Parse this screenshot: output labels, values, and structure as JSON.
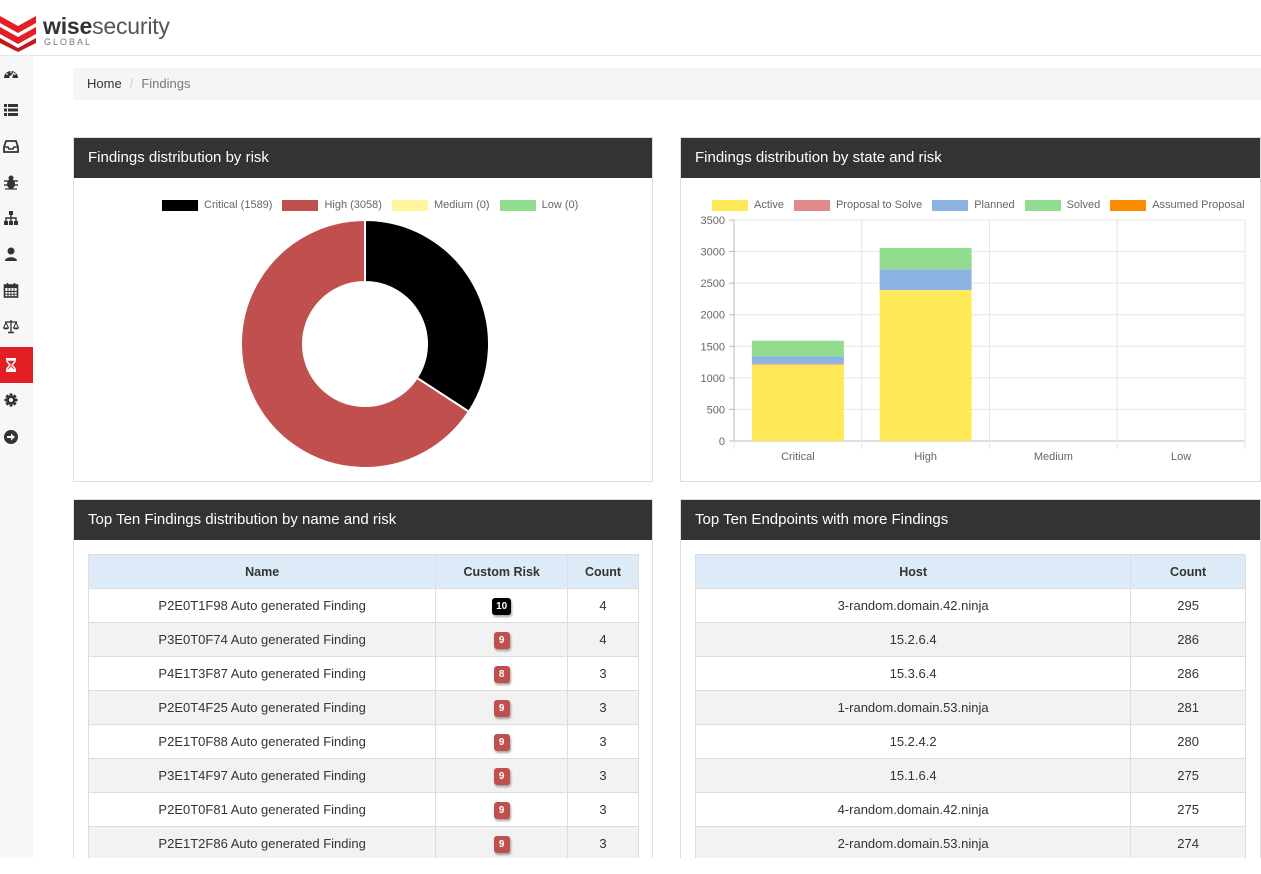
{
  "header": {
    "brand_bold": "wise",
    "brand_light": "security",
    "brand_sub": "GLOBAL"
  },
  "sidebar": {
    "items": [
      {
        "icon": "dashboard-icon"
      },
      {
        "icon": "list-icon"
      },
      {
        "icon": "inbox-icon"
      },
      {
        "icon": "bug-icon"
      },
      {
        "icon": "sitemap-icon"
      },
      {
        "icon": "user-icon"
      },
      {
        "icon": "calendar-icon"
      },
      {
        "icon": "balance-scale-icon"
      },
      {
        "icon": "hourglass-icon",
        "active": true
      },
      {
        "icon": "gear-icon"
      },
      {
        "icon": "arrow-circle-right-icon"
      }
    ],
    "active_color": "#e31e24"
  },
  "breadcrumb": {
    "home": "Home",
    "separator": "/",
    "current": "Findings"
  },
  "panels": {
    "risk": {
      "title": "Findings distribution by risk"
    },
    "state": {
      "title": "Findings distribution by state and risk"
    },
    "top_findings": {
      "title": "Top Ten Findings distribution by name and risk"
    },
    "top_endpoints": {
      "title": "Top Ten Endpoints with more Findings"
    }
  },
  "chart_data": [
    {
      "type": "pie",
      "variant": "doughnut",
      "legend_position": "top",
      "legend_labels": [
        "Critical (1589)",
        "High (3058)",
        "Medium (0)",
        "Low (0)"
      ],
      "categories": [
        "Critical",
        "High",
        "Medium",
        "Low"
      ],
      "values": [
        1589,
        3058,
        0,
        0
      ],
      "colors": [
        "#000000",
        "#c0504d",
        "#fff59d",
        "#90dd8f"
      ]
    },
    {
      "type": "bar",
      "stacked": true,
      "legend_position": "top",
      "categories": [
        "Critical",
        "High",
        "Medium",
        "Low"
      ],
      "ylim": [
        0,
        3500
      ],
      "yticks": [
        0,
        500,
        1000,
        1500,
        2000,
        2500,
        3000,
        3500
      ],
      "grid": true,
      "series": [
        {
          "name": "Active",
          "color": "#ffe957",
          "values": [
            1210,
            2390,
            0,
            0
          ]
        },
        {
          "name": "Proposal to Solve",
          "color": "#e28a8a",
          "values": [
            15,
            0,
            0,
            0
          ]
        },
        {
          "name": "Planned",
          "color": "#8db3e2",
          "values": [
            115,
            330,
            0,
            0
          ]
        },
        {
          "name": "Solved",
          "color": "#92dc8f",
          "values": [
            249,
            338,
            0,
            0
          ]
        },
        {
          "name": "Assumed Proposal",
          "color": "#fb8c00",
          "values": [
            0,
            0,
            0,
            0
          ]
        }
      ]
    }
  ],
  "top_findings": {
    "columns": [
      "Name",
      "Custom Risk",
      "Count"
    ],
    "rows": [
      {
        "name": "P2E0T1F98 Auto generated Finding",
        "risk": "10",
        "risk_color": "#000000",
        "count": "4"
      },
      {
        "name": "P3E0T0F74 Auto generated Finding",
        "risk": "9",
        "risk_color": "#c0504d",
        "count": "4"
      },
      {
        "name": "P4E1T3F87 Auto generated Finding",
        "risk": "8",
        "risk_color": "#c0504d",
        "count": "3"
      },
      {
        "name": "P2E0T4F25 Auto generated Finding",
        "risk": "9",
        "risk_color": "#c0504d",
        "count": "3"
      },
      {
        "name": "P2E1T0F88 Auto generated Finding",
        "risk": "9",
        "risk_color": "#c0504d",
        "count": "3"
      },
      {
        "name": "P3E1T4F97 Auto generated Finding",
        "risk": "9",
        "risk_color": "#c0504d",
        "count": "3"
      },
      {
        "name": "P2E0T0F81 Auto generated Finding",
        "risk": "9",
        "risk_color": "#c0504d",
        "count": "3"
      },
      {
        "name": "P2E1T2F86 Auto generated Finding",
        "risk": "9",
        "risk_color": "#c0504d",
        "count": "3"
      }
    ]
  },
  "top_endpoints": {
    "columns": [
      "Host",
      "Count"
    ],
    "rows": [
      {
        "host": "3-random.domain.42.ninja",
        "count": "295"
      },
      {
        "host": "15.2.6.4",
        "count": "286"
      },
      {
        "host": "15.3.6.4",
        "count": "286"
      },
      {
        "host": "1-random.domain.53.ninja",
        "count": "281"
      },
      {
        "host": "15.2.4.2",
        "count": "280"
      },
      {
        "host": "15.1.6.4",
        "count": "275"
      },
      {
        "host": "4-random.domain.42.ninja",
        "count": "275"
      },
      {
        "host": "2-random.domain.53.ninja",
        "count": "274"
      }
    ]
  }
}
